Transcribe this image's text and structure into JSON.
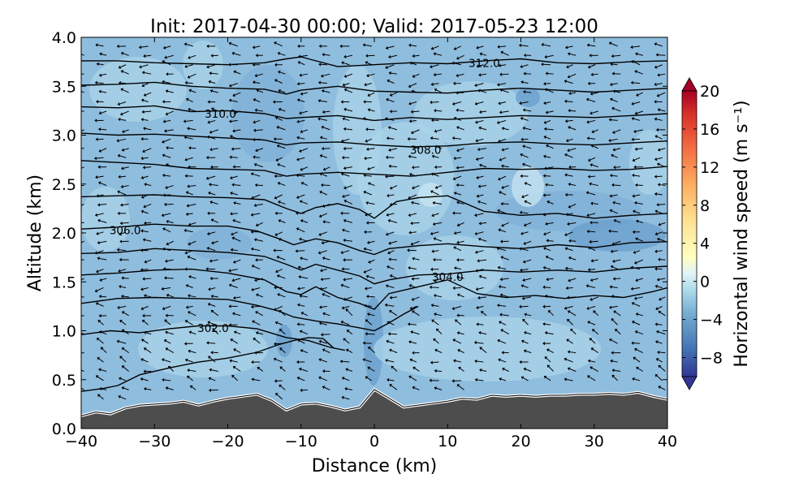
{
  "chart_data": {
    "type": "contour",
    "title": "Init: 2017-04-30 00:00; Valid: 2017-05-23 12:00",
    "xlabel": "Distance (km)",
    "ylabel": "Altitude (km)",
    "xlim": [
      -40,
      40
    ],
    "ylim": [
      0.0,
      4.0
    ],
    "x_ticks": [
      "−40",
      "−30",
      "−20",
      "−10",
      "0",
      "10",
      "20",
      "30",
      "40"
    ],
    "y_ticks": [
      "0.0",
      "0.5",
      "1.0",
      "1.5",
      "2.0",
      "2.5",
      "3.0",
      "3.5",
      "4.0"
    ],
    "colorbar": {
      "label": "Horizontal wind speed (m s⁻¹)",
      "range": [
        -10,
        20
      ],
      "ticks": [
        "−8",
        "−4",
        "0",
        "4",
        "8",
        "12",
        "16",
        "20"
      ],
      "colormap": "RdYlBu_r"
    },
    "terrain": {
      "x": [
        -40,
        -38,
        -36,
        -34,
        -32,
        -30,
        -28,
        -26,
        -24,
        -22,
        -20,
        -18,
        -16,
        -14,
        -12,
        -10,
        -8,
        -6,
        -4,
        -2,
        0,
        2,
        4,
        6,
        8,
        10,
        12,
        14,
        16,
        18,
        20,
        22,
        24,
        26,
        28,
        30,
        32,
        34,
        36,
        38,
        40
      ],
      "altitude_km": [
        0.13,
        0.17,
        0.15,
        0.21,
        0.24,
        0.25,
        0.26,
        0.28,
        0.24,
        0.28,
        0.31,
        0.33,
        0.35,
        0.29,
        0.19,
        0.25,
        0.26,
        0.23,
        0.19,
        0.22,
        0.4,
        0.31,
        0.22,
        0.24,
        0.26,
        0.28,
        0.31,
        0.3,
        0.34,
        0.33,
        0.34,
        0.33,
        0.34,
        0.34,
        0.35,
        0.35,
        0.36,
        0.35,
        0.37,
        0.33,
        0.3
      ]
    },
    "contour_labels": [
      {
        "text": "302.0",
        "x": -22,
        "y": 1.03
      },
      {
        "text": "304.0",
        "x": 10,
        "y": 1.55
      },
      {
        "text": "306.0",
        "x": -34,
        "y": 2.03
      },
      {
        "text": "308.0",
        "x": 7,
        "y": 2.85
      },
      {
        "text": "310.0",
        "x": -21,
        "y": 3.22
      },
      {
        "text": "312.0",
        "x": 15,
        "y": 3.74
      }
    ],
    "theta_contours": [
      {
        "value": 301.5,
        "x": [
          -40,
          -37,
          -35,
          -32,
          -28,
          -24,
          -20,
          -16,
          -13,
          -11,
          -9,
          -7,
          -5.5
        ],
        "y": [
          0.38,
          0.41,
          0.44,
          0.55,
          0.62,
          0.68,
          0.72,
          0.78,
          0.86,
          0.9,
          0.93,
          0.92,
          0.82
        ]
      },
      {
        "value": 302.0,
        "x": [
          -40,
          -36,
          -32,
          -28,
          -24,
          -20,
          -16,
          -12,
          -9,
          -6,
          -4
        ],
        "y": [
          0.96,
          1.0,
          0.98,
          1.02,
          1.05,
          1.05,
          1.02,
          0.93,
          0.9,
          0.83,
          0.8
        ]
      },
      {
        "value": 302.5,
        "x": [
          -40,
          -35,
          -30,
          -25,
          -20,
          -16,
          -13,
          -11,
          -8,
          -5,
          -2,
          0,
          2,
          4,
          6
        ],
        "y": [
          1.28,
          1.33,
          1.34,
          1.33,
          1.32,
          1.26,
          1.2,
          1.14,
          1.1,
          1.07,
          1.03,
          1.0,
          1.08,
          1.17,
          1.25
        ]
      },
      {
        "value": 303.5,
        "x": [
          -40,
          -35,
          -30,
          -25,
          -20,
          -15,
          -12,
          -10,
          -8,
          -5,
          -2,
          0,
          2,
          6,
          10,
          14,
          18,
          22,
          26,
          30,
          34,
          38,
          40
        ],
        "y": [
          1.57,
          1.59,
          1.62,
          1.63,
          1.59,
          1.52,
          1.4,
          1.37,
          1.45,
          1.34,
          1.28,
          1.22,
          1.38,
          1.45,
          1.52,
          1.38,
          1.34,
          1.36,
          1.33,
          1.36,
          1.34,
          1.4,
          1.44
        ]
      },
      {
        "value": 304.0,
        "x": [
          -40,
          -35,
          -30,
          -25,
          -20,
          -15,
          -12,
          -10,
          -8,
          -5,
          -2,
          0,
          2,
          6,
          10,
          15,
          20,
          25,
          30,
          35,
          40
        ],
        "y": [
          1.79,
          1.8,
          1.84,
          1.82,
          1.8,
          1.76,
          1.68,
          1.62,
          1.68,
          1.62,
          1.56,
          1.48,
          1.52,
          1.57,
          1.58,
          1.62,
          1.6,
          1.62,
          1.6,
          1.64,
          1.66
        ]
      },
      {
        "value": 305.0,
        "x": [
          -40,
          -35,
          -30,
          -25,
          -20,
          -16,
          -13,
          -11,
          -8,
          -5,
          -2,
          0,
          2,
          6,
          10,
          15,
          20,
          25,
          30,
          35,
          40
        ],
        "y": [
          2.04,
          2.06,
          2.09,
          2.07,
          2.07,
          2.02,
          1.94,
          1.88,
          1.94,
          1.9,
          1.82,
          1.78,
          1.84,
          1.87,
          1.89,
          1.86,
          1.84,
          1.88,
          1.85,
          1.9,
          1.91
        ]
      },
      {
        "value": 306.0,
        "x": [
          -40,
          -35,
          -30,
          -25,
          -20,
          -15,
          -12,
          -10,
          -8,
          -5,
          -2,
          0,
          3,
          6,
          10,
          15,
          20,
          25,
          30,
          35,
          40
        ],
        "y": [
          2.37,
          2.38,
          2.39,
          2.37,
          2.36,
          2.34,
          2.25,
          2.2,
          2.26,
          2.3,
          2.24,
          2.15,
          2.32,
          2.36,
          2.38,
          2.22,
          2.18,
          2.2,
          2.15,
          2.18,
          2.2
        ]
      },
      {
        "value": 307.0,
        "x": [
          -40,
          -35,
          -30,
          -25,
          -20,
          -15,
          -12,
          -10,
          -5,
          0,
          5,
          10,
          15,
          20,
          25,
          30,
          35,
          40
        ],
        "y": [
          2.74,
          2.72,
          2.7,
          2.66,
          2.65,
          2.64,
          2.58,
          2.6,
          2.62,
          2.6,
          2.58,
          2.62,
          2.66,
          2.65,
          2.66,
          2.64,
          2.65,
          2.68
        ]
      },
      {
        "value": 308.0,
        "x": [
          -40,
          -35,
          -30,
          -25,
          -20,
          -15,
          -12,
          -10,
          -5,
          0,
          5,
          10,
          15,
          20,
          25,
          30,
          35,
          40
        ],
        "y": [
          3.02,
          3.0,
          3.01,
          2.99,
          2.97,
          2.95,
          2.9,
          2.92,
          2.93,
          2.9,
          2.88,
          2.89,
          2.92,
          2.93,
          2.91,
          2.9,
          2.92,
          2.94
        ]
      },
      {
        "value": 309.0,
        "x": [
          -40,
          -35,
          -30,
          -25,
          -20,
          -15,
          -12,
          -10,
          -5,
          0,
          5,
          10,
          15,
          20,
          25,
          30,
          35,
          40
        ],
        "y": [
          3.29,
          3.28,
          3.3,
          3.24,
          3.25,
          3.22,
          3.17,
          3.18,
          3.2,
          3.15,
          3.18,
          3.16,
          3.18,
          3.2,
          3.19,
          3.18,
          3.2,
          3.22
        ]
      },
      {
        "value": 310.0,
        "x": [
          -40,
          -35,
          -30,
          -25,
          -20,
          -15,
          -12,
          -10,
          -5,
          0,
          5,
          10,
          15,
          20,
          25,
          30,
          35,
          40
        ],
        "y": [
          3.51,
          3.52,
          3.54,
          3.5,
          3.48,
          3.47,
          3.42,
          3.46,
          3.5,
          3.45,
          3.44,
          3.43,
          3.46,
          3.48,
          3.46,
          3.44,
          3.46,
          3.48
        ]
      },
      {
        "value": 311.5,
        "x": [
          -40,
          -35,
          -30,
          -25,
          -20,
          -15,
          -12,
          -10,
          -5,
          0,
          5,
          10,
          15,
          20,
          25,
          30,
          35,
          40
        ],
        "y": [
          3.76,
          3.76,
          3.74,
          3.73,
          3.72,
          3.74,
          3.78,
          3.8,
          3.7,
          3.72,
          3.74,
          3.73,
          3.76,
          3.78,
          3.74,
          3.73,
          3.75,
          3.76
        ]
      }
    ]
  }
}
